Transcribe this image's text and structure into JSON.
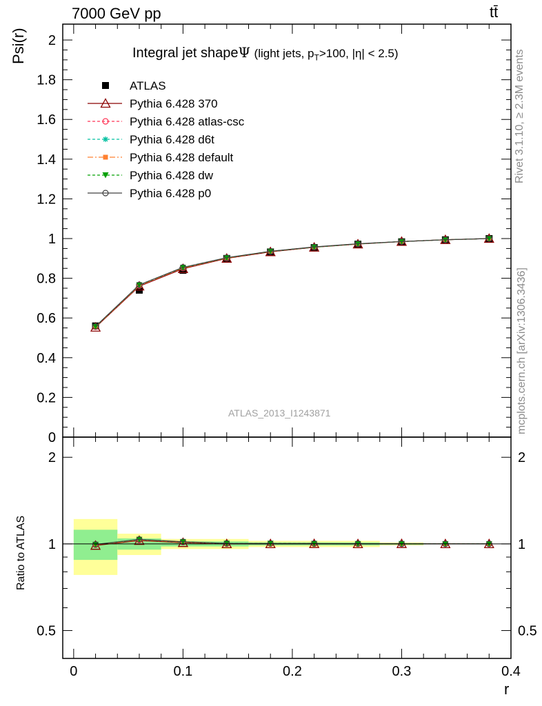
{
  "header": {
    "energy_label": "7000 GeV pp",
    "process_label": "tt̄"
  },
  "side_text": {
    "rivet": "Rivet 3.1.10, ≥ 2.3M events",
    "mcplots": "mcplots.cern.ch [arXiv:1306.3436]"
  },
  "chart_data": {
    "type": "line",
    "title_main": "Integral jet shape",
    "title_symbol": "Ψ",
    "title_detail": "(light jets, p_T>100, |η| < 2.5)",
    "analysis_id": "ATLAS_2013_I1243871",
    "xlabel": "r",
    "ylabel": "Psi(r)",
    "ratio_ylabel": "Ratio to ATLAS",
    "xlim": [
      -0.01,
      0.4
    ],
    "ylim": [
      0,
      2.08
    ],
    "ratio_ylim": [
      0.4,
      2.35
    ],
    "ratio_scale": "log",
    "x_ticks": [
      "0",
      "0.1",
      "0.2",
      "0.3",
      "0.4"
    ],
    "y_ticks": [
      "0",
      "0.2",
      "0.4",
      "0.6",
      "0.8",
      "1",
      "1.2",
      "1.4",
      "1.6",
      "1.8",
      "2"
    ],
    "ratio_ticks": [
      "0.5",
      "1",
      "2"
    ],
    "legend_position": "top-left",
    "x": [
      0.02,
      0.06,
      0.1,
      0.14,
      0.18,
      0.22,
      0.26,
      0.3,
      0.34,
      0.38
    ],
    "data": {
      "name": "ATLAS",
      "values": [
        0.56,
        0.74,
        0.84,
        0.9,
        0.933,
        0.955,
        0.972,
        0.984,
        0.994,
        1.0
      ],
      "band_edges": [
        0.0,
        0.04,
        0.08,
        0.16,
        0.28
      ],
      "band_inner": [
        0.12,
        0.045,
        0.02,
        0.012,
        0.006
      ],
      "band_outer": [
        0.22,
        0.085,
        0.04,
        0.025,
        0.012
      ]
    },
    "series": [
      {
        "name": "Pythia 6.428 370",
        "color": "#8b0000",
        "dash": "",
        "marker": "triangle-open",
        "values": [
          0.553,
          0.76,
          0.848,
          0.9,
          0.933,
          0.956,
          0.972,
          0.985,
          0.994,
          1.0
        ]
      },
      {
        "name": "Pythia 6.428 atlas-csc",
        "color": "#ff3355",
        "dash": "4,3",
        "marker": "circle-open",
        "values": [
          0.556,
          0.763,
          0.852,
          0.902,
          0.935,
          0.957,
          0.973,
          0.985,
          0.994,
          1.0
        ]
      },
      {
        "name": "Pythia 6.428 d6t",
        "color": "#00c0a0",
        "dash": "4,3",
        "marker": "star",
        "values": [
          0.557,
          0.765,
          0.853,
          0.903,
          0.935,
          0.957,
          0.973,
          0.985,
          0.994,
          1.0
        ]
      },
      {
        "name": "Pythia 6.428 default",
        "color": "#ff8030",
        "dash": "8,3,2,3",
        "marker": "square",
        "values": [
          0.556,
          0.764,
          0.852,
          0.902,
          0.935,
          0.957,
          0.973,
          0.985,
          0.994,
          1.0
        ]
      },
      {
        "name": "Pythia 6.428 dw",
        "color": "#00a000",
        "dash": "4,3",
        "marker": "triangle-down",
        "values": [
          0.557,
          0.766,
          0.854,
          0.903,
          0.936,
          0.957,
          0.973,
          0.985,
          0.994,
          1.0
        ]
      },
      {
        "name": "Pythia 6.428 p0",
        "color": "#404040",
        "dash": "",
        "marker": "circle-open",
        "values": [
          0.558,
          0.767,
          0.855,
          0.904,
          0.936,
          0.958,
          0.974,
          0.985,
          0.994,
          1.0
        ]
      }
    ]
  }
}
